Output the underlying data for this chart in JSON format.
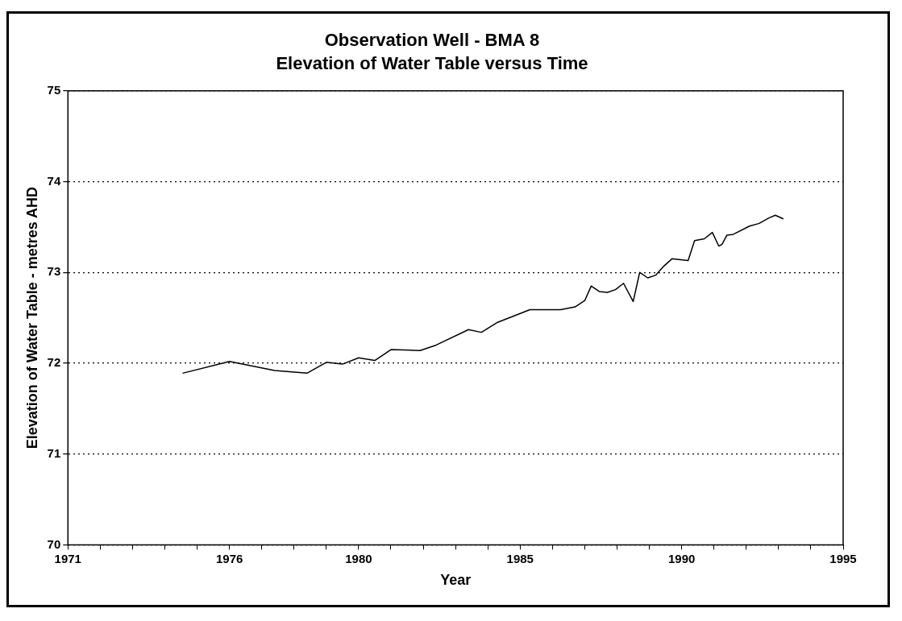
{
  "chart_data": {
    "type": "line",
    "title": "Observation Well - BMA 8",
    "subtitle": "Elevation of Water Table versus Time",
    "xlabel": "Year",
    "ylabel": "Elevation of Water Table - metres AHD",
    "series": [
      {
        "color": "#000000",
        "x": [
          1974.55,
          1976.0,
          1977.4,
          1978.4,
          1979.0,
          1979.5,
          1980.0,
          1980.5,
          1981.0,
          1981.9,
          1982.4,
          1983.4,
          1983.8,
          1984.3,
          1985.3,
          1986.25,
          1986.7,
          1987.0,
          1987.2,
          1987.45,
          1987.7,
          1987.95,
          1988.2,
          1988.5,
          1988.7,
          1988.95,
          1989.2,
          1989.45,
          1989.7,
          1990.2,
          1990.4,
          1990.7,
          1990.95,
          1991.15,
          1991.25,
          1991.4,
          1991.6,
          1992.1,
          1992.4,
          1992.7,
          1992.9,
          1993.15
        ],
        "values": [
          71.89,
          72.02,
          71.92,
          71.89,
          72.01,
          71.99,
          72.06,
          72.03,
          72.15,
          72.14,
          72.2,
          72.37,
          72.34,
          72.45,
          72.59,
          72.59,
          72.62,
          72.69,
          72.85,
          72.79,
          72.78,
          72.81,
          72.88,
          72.68,
          73.0,
          72.94,
          72.97,
          73.07,
          73.15,
          73.13,
          73.35,
          73.37,
          73.44,
          73.29,
          73.31,
          73.41,
          73.42,
          73.51,
          73.54,
          73.6,
          73.63,
          73.59
        ]
      }
    ],
    "xlim": [
      1971,
      1995
    ],
    "xticks": [
      1971,
      {
        "value": 1972,
        "label": null
      },
      {
        "value": 1973,
        "label": null
      },
      {
        "value": 1974,
        "label": null
      },
      {
        "value": 1975,
        "label": null
      },
      1976,
      {
        "value": 1977,
        "label": null
      },
      {
        "value": 1978,
        "label": null
      },
      {
        "value": 1979,
        "label": null
      },
      1980,
      {
        "value": 1981,
        "label": null
      },
      {
        "value": 1982,
        "label": null
      },
      {
        "value": 1983,
        "label": null
      },
      {
        "value": 1984,
        "label": null
      },
      1985,
      {
        "value": 1986,
        "label": null
      },
      {
        "value": 1987,
        "label": null
      },
      {
        "value": 1988,
        "label": null
      },
      {
        "value": 1989,
        "label": null
      },
      1990,
      {
        "value": 1991,
        "label": null
      },
      {
        "value": 1992,
        "label": null
      },
      {
        "value": 1993,
        "label": null
      },
      {
        "value": 1994,
        "label": null
      },
      1995
    ],
    "ylim": [
      70,
      75
    ],
    "yticks": [
      70,
      71,
      72,
      73,
      74,
      75
    ],
    "grid": "y",
    "legend": false,
    "marker": "none",
    "line_style": "solid"
  }
}
